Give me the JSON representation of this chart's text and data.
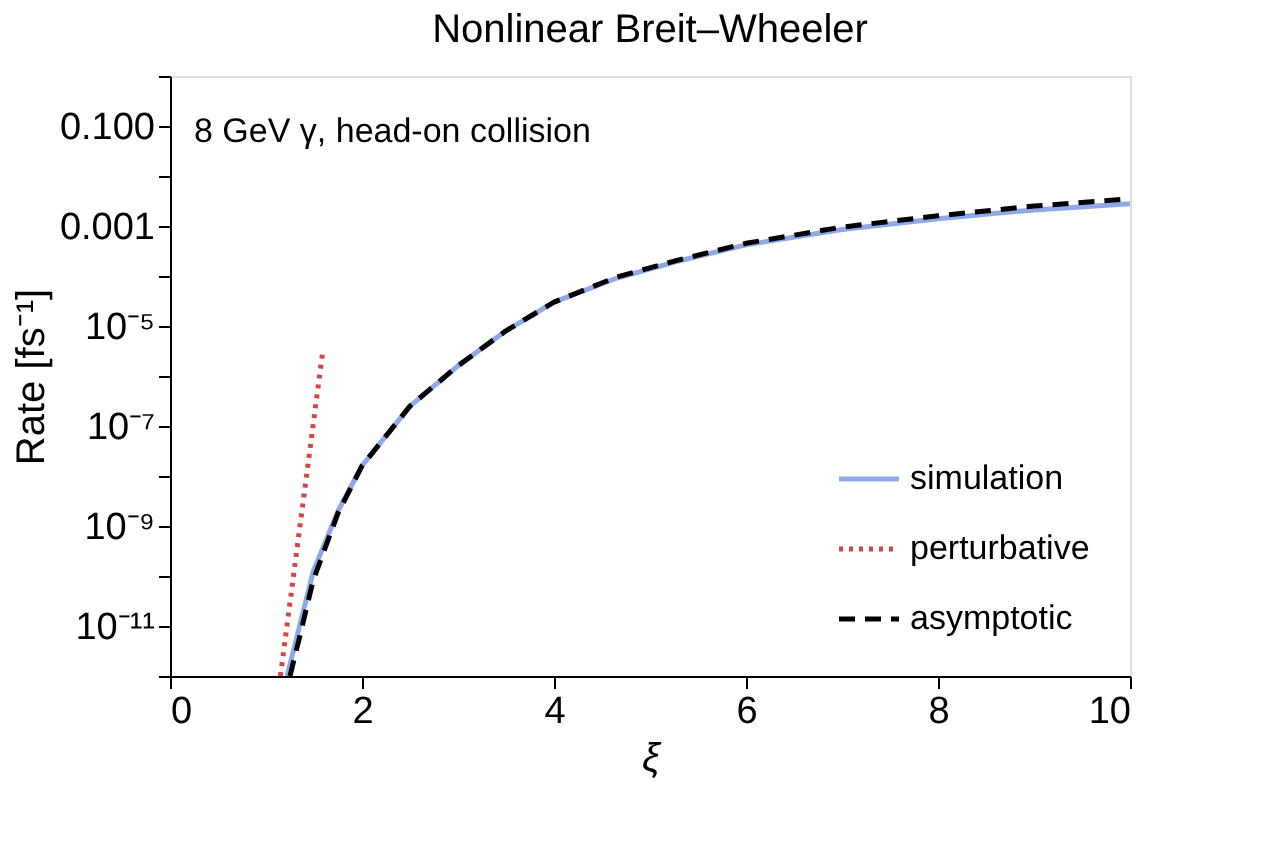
{
  "chart_data": {
    "type": "line",
    "title": "Nonlinear Breit–Wheeler",
    "xlabel": "ξ",
    "ylabel": "Rate [fs⁻¹]",
    "annotations": [
      "8 GeV γ, head-on collision"
    ],
    "log": "y",
    "grid": false,
    "legend": "bottom right",
    "marker": "none",
    "xlim": [
      0,
      10
    ],
    "xticks": [
      0,
      2,
      4,
      6,
      8,
      10
    ],
    "ylim": [
      1e-12,
      1
    ],
    "yticks": [
      {
        "value": 1e-12,
        "label": null
      },
      {
        "value": 1e-11,
        "label": "10⁻¹¹"
      },
      {
        "value": 1e-10,
        "label": null
      },
      {
        "value": 1e-09,
        "label": "10⁻⁹"
      },
      {
        "value": 1e-08,
        "label": null
      },
      {
        "value": 1e-07,
        "label": "10⁻⁷"
      },
      {
        "value": 1e-06,
        "label": null
      },
      {
        "value": 1e-05,
        "label": "10⁻⁵"
      },
      {
        "value": 0.0001,
        "label": null
      },
      {
        "value": 0.001,
        "label": "0.001"
      },
      {
        "value": 0.01,
        "label": null
      },
      {
        "value": 0.1,
        "label": "0.100"
      },
      {
        "value": 1,
        "label": null
      }
    ],
    "series": [
      {
        "name": "simulation",
        "color": "#8fa8e8",
        "line_style": "solid",
        "x": [
          1.22,
          1.35,
          1.49,
          1.75,
          2.0,
          2.5,
          3.0,
          3.5,
          4.0,
          4.65,
          5.3,
          6.0,
          7.0,
          8.0,
          9.0,
          10.0
        ],
        "values": [
          1e-12,
          1e-11,
          1.2e-10,
          2e-09,
          1.6e-08,
          2.5e-07,
          1.6e-06,
          8e-06,
          3e-05,
          9e-05,
          0.0002,
          0.00042,
          0.00085,
          0.0014,
          0.0021,
          0.0028
        ]
      },
      {
        "name": "perturbative",
        "color": "#d64545",
        "line_style": "dotted",
        "x": [
          1.15,
          1.59
        ],
        "values": [
          1e-12,
          3e-06
        ]
      },
      {
        "name": "asymptotic",
        "color": "#000000",
        "line_style": "dashed",
        "x": [
          1.25,
          1.35,
          1.49,
          1.75,
          2.0,
          2.5,
          3.0,
          3.5,
          4.0,
          4.65,
          5.3,
          6.0,
          7.0,
          8.0,
          9.0,
          10.0
        ],
        "values": [
          1e-12,
          6e-12,
          8e-11,
          1.8e-09,
          1.6e-08,
          2.5e-07,
          1.6e-06,
          8e-06,
          3e-05,
          9.5e-05,
          0.00021,
          0.00045,
          0.00095,
          0.0016,
          0.0025,
          0.0035
        ]
      }
    ]
  }
}
